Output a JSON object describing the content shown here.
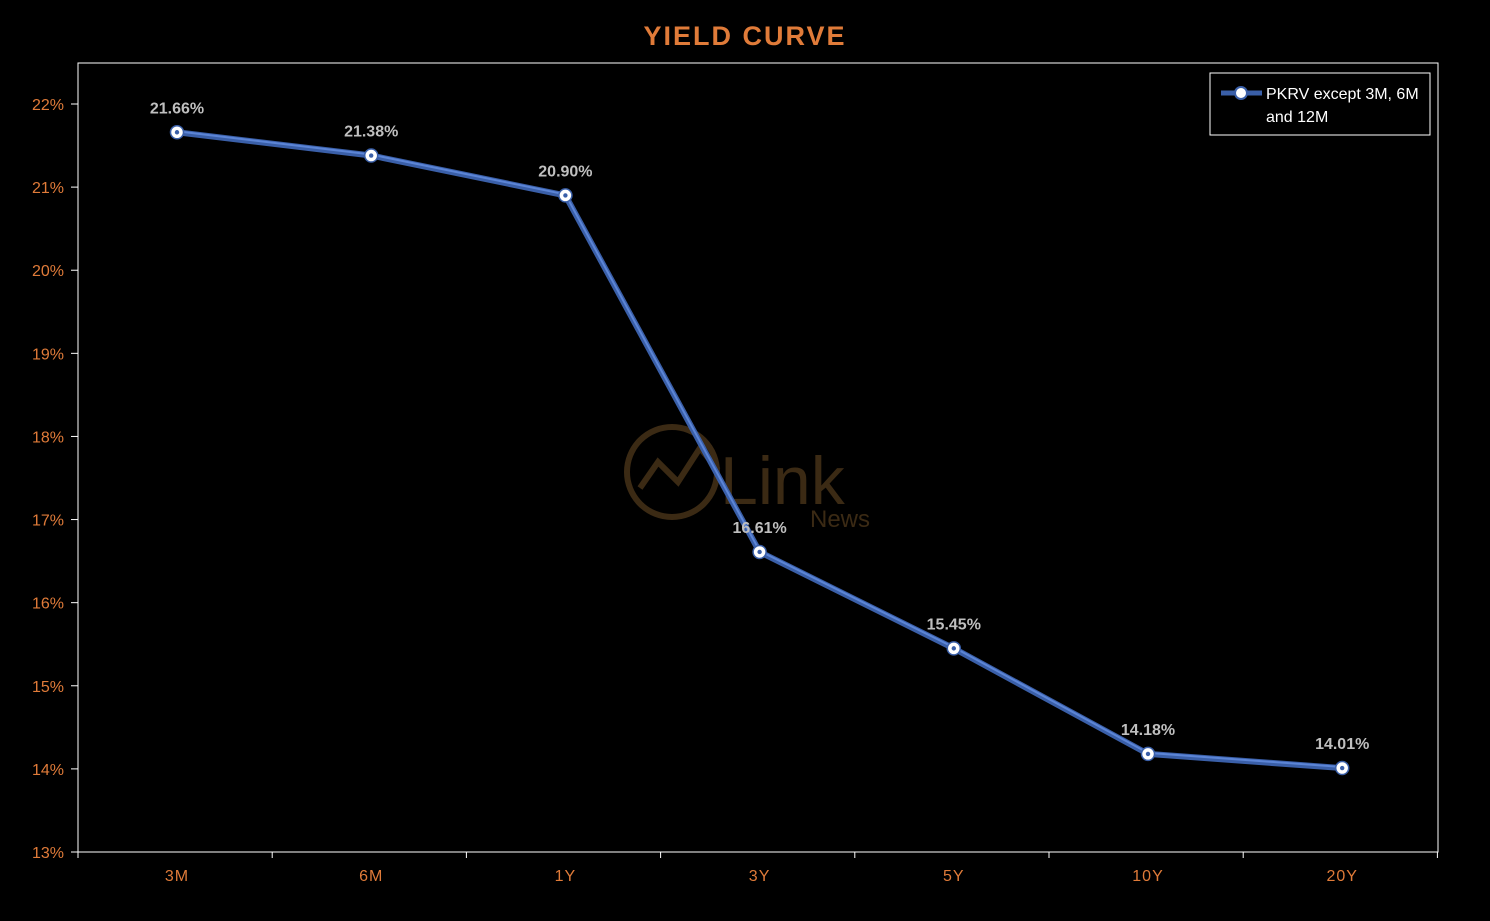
{
  "colors": {
    "background": "#000000",
    "accent_orange": "#E07B39",
    "series_line": "#3A5FA8",
    "series_line_highlight": "#5C85D6",
    "data_label": "#BFBFBF",
    "frame": "#FFFFFF",
    "legend_text": "#FFFFFF",
    "watermark": "#3B2A14"
  },
  "watermark": {
    "brand": "Link",
    "sub": "News"
  },
  "chart_data": {
    "type": "line",
    "title": "YIELD CURVE",
    "xlabel": "",
    "ylabel": "",
    "categories": [
      "3M",
      "6M",
      "1Y",
      "3Y",
      "5Y",
      "10Y",
      "20Y"
    ],
    "series": [
      {
        "name": "PKRV except 3M, 6M and 12M",
        "values": [
          21.66,
          21.38,
          20.9,
          16.61,
          15.45,
          14.18,
          14.01
        ],
        "labels": [
          "21.66%",
          "21.38%",
          "20.90%",
          "16.61%",
          "15.45%",
          "14.18%",
          "14.01%"
        ]
      }
    ],
    "ylim": [
      13,
      22
    ],
    "yticks": [
      13,
      14,
      15,
      16,
      17,
      18,
      19,
      20,
      21,
      22
    ],
    "ytick_labels": [
      "13%",
      "14%",
      "15%",
      "16%",
      "17%",
      "18%",
      "19%",
      "20%",
      "21%",
      "22%"
    ],
    "grid": false,
    "drop_lines": true,
    "legend": {
      "placement": "top-right",
      "lines": [
        "PKRV except 3M, 6M",
        "and 12M"
      ]
    }
  }
}
